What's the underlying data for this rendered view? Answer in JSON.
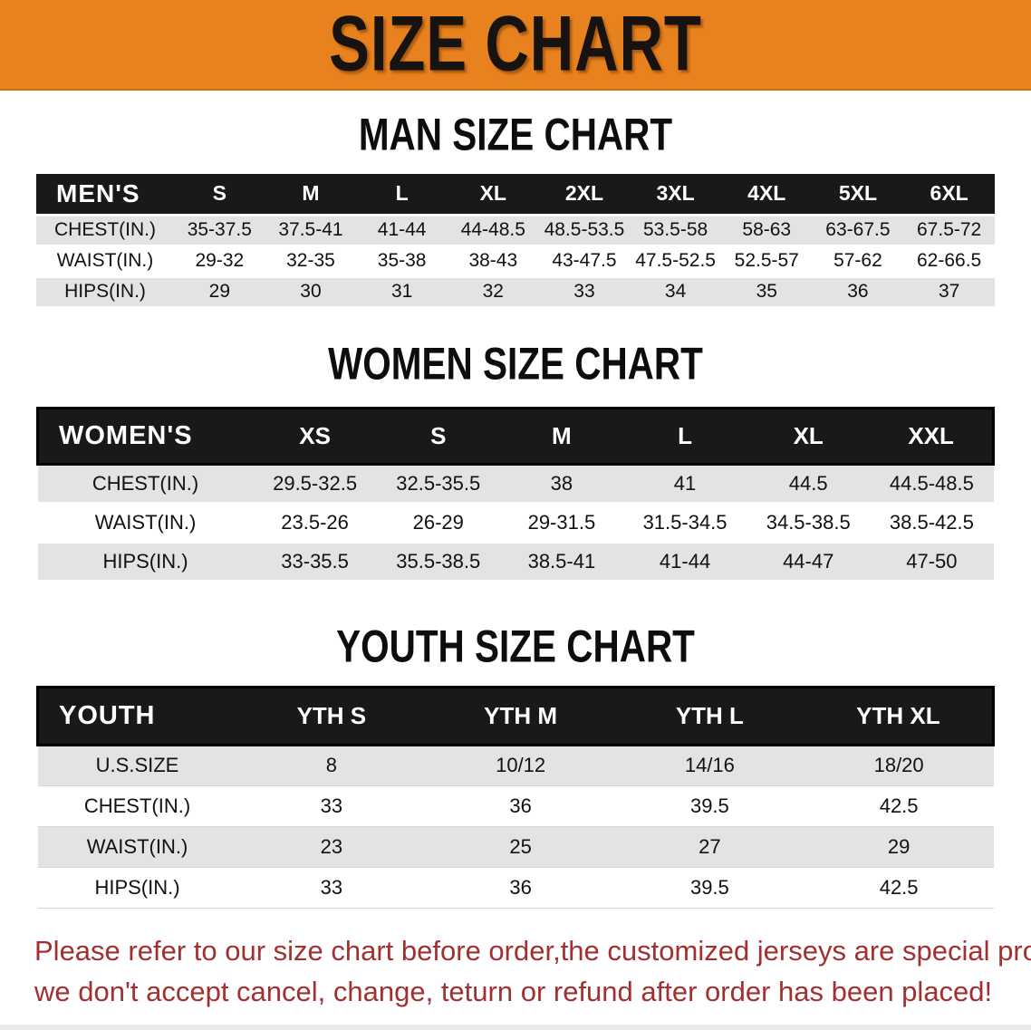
{
  "banner": {
    "title": "SIZE CHART"
  },
  "colors": {
    "banner_bg": "#E8821E",
    "header_bar": "#1B1917",
    "row_stripe": "#E3E3E3",
    "disclaimer_red": "#A33030"
  },
  "sections": [
    {
      "id": "mens",
      "title": "MAN SIZE CHART",
      "header_label": "MEN'S",
      "columns": [
        "S",
        "M",
        "L",
        "XL",
        "2XL",
        "3XL",
        "4XL",
        "5XL",
        "6XL"
      ],
      "rows": [
        {
          "label": "CHEST(IN.)",
          "values": [
            "35-37.5",
            "37.5-41",
            "41-44",
            "44-48.5",
            "48.5-53.5",
            "53.5-58",
            "58-63",
            "63-67.5",
            "67.5-72"
          ]
        },
        {
          "label": "WAIST(IN.)",
          "values": [
            "29-32",
            "32-35",
            "35-38",
            "38-43",
            "43-47.5",
            "47.5-52.5",
            "52.5-57",
            "57-62",
            "62-66.5"
          ]
        },
        {
          "label": "HIPS(IN.)",
          "values": [
            "29",
            "30",
            "31",
            "32",
            "33",
            "34",
            "35",
            "36",
            "37"
          ]
        }
      ]
    },
    {
      "id": "womens",
      "title": "WOMEN SIZE CHART",
      "header_label": "WOMEN'S",
      "columns": [
        "XS",
        "S",
        "M",
        "L",
        "XL",
        "XXL"
      ],
      "rows": [
        {
          "label": "CHEST(IN.)",
          "values": [
            "29.5-32.5",
            "32.5-35.5",
            "38",
            "41",
            "44.5",
            "44.5-48.5"
          ]
        },
        {
          "label": "WAIST(IN.)",
          "values": [
            "23.5-26",
            "26-29",
            "29-31.5",
            "31.5-34.5",
            "34.5-38.5",
            "38.5-42.5"
          ]
        },
        {
          "label": "HIPS(IN.)",
          "values": [
            "33-35.5",
            "35.5-38.5",
            "38.5-41",
            "41-44",
            "44-47",
            "47-50"
          ]
        }
      ]
    },
    {
      "id": "youth",
      "title": "YOUTH SIZE CHART",
      "header_label": "YOUTH",
      "columns": [
        "YTH S",
        "YTH M",
        "YTH L",
        "YTH XL"
      ],
      "rows": [
        {
          "label": "U.S.SIZE",
          "values": [
            "8",
            "10/12",
            "14/16",
            "18/20"
          ]
        },
        {
          "label": "CHEST(IN.)",
          "values": [
            "33",
            "36",
            "39.5",
            "42.5"
          ]
        },
        {
          "label": "WAIST(IN.)",
          "values": [
            "23",
            "25",
            "27",
            "29"
          ]
        },
        {
          "label": "HIPS(IN.)",
          "values": [
            "33",
            "36",
            "39.5",
            "42.5"
          ]
        }
      ]
    }
  ],
  "disclaimer": {
    "line1": "Please refer to our size chart before order,the customized jerseys are special products,",
    "line2": "we don't accept cancel, change, teturn or refund after order has been placed!"
  }
}
